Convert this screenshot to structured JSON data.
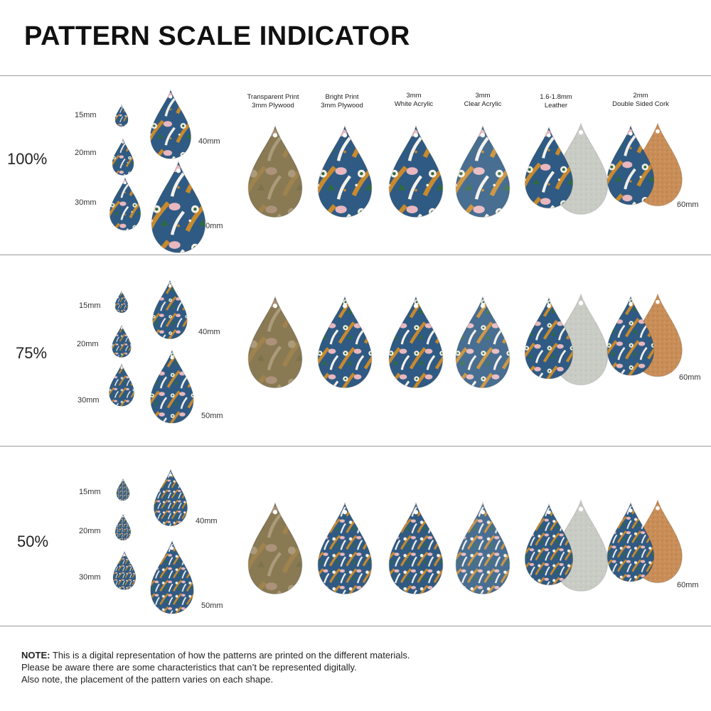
{
  "title": "PATTERN SCALE INDICATOR",
  "materials": [
    {
      "line1": "Transparent Print",
      "line2": "3mm Plywood"
    },
    {
      "line1": "Bright Print",
      "line2": "3mm Plywood"
    },
    {
      "line1": "3mm",
      "line2": "White Acrylic"
    },
    {
      "line1": "3mm",
      "line2": "Clear Acrylic"
    },
    {
      "line1": "1.6-1.8mm",
      "line2": "Leather"
    },
    {
      "line1": "2mm",
      "line2": "Double Sided Cork"
    }
  ],
  "rows": [
    {
      "scale": "100%",
      "sizes": [
        "15mm",
        "20mm",
        "30mm",
        "40mm",
        "50mm"
      ],
      "large_size": "60mm"
    },
    {
      "scale": "75%",
      "sizes": [
        "15mm",
        "20mm",
        "30mm",
        "40mm",
        "50mm"
      ],
      "large_size": "60mm"
    },
    {
      "scale": "50%",
      "sizes": [
        "15mm",
        "20mm",
        "30mm",
        "40mm",
        "50mm"
      ],
      "large_size": "60mm"
    }
  ],
  "note": {
    "bold": "NOTE:",
    "line1": " This is a digital representation of how the patterns are printed on the different materials.",
    "line2": "Please be aware there are some characteristics that can’t be represented digitally.",
    "line3": "Also note, the placement of the pattern varies on each shape."
  },
  "colors": {
    "navy": "#2f5a83",
    "mustard": "#c88a2c",
    "green": "#2f6a3e",
    "pink": "#e8b7bf",
    "white": "#f4f1ea",
    "plywood": "#8a7a55",
    "suede": "#c9cbc5",
    "cork": "#c98e58"
  }
}
